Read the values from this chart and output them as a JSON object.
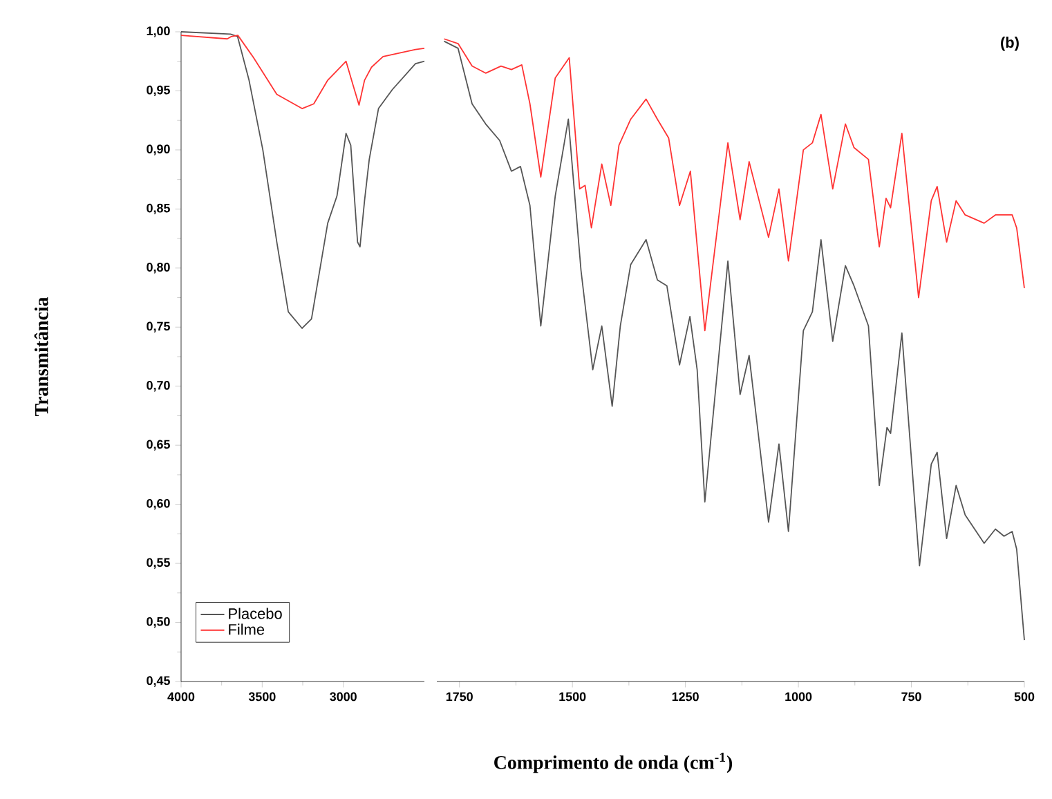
{
  "chart_data": [
    {
      "type": "line",
      "ylabel": "Transmitância",
      "xlim": [
        4000,
        2500
      ],
      "xticks": [
        4000,
        3500,
        3000
      ],
      "ylim": [
        0.45,
        1.0
      ],
      "yticks": [
        {
          "value": 0.45,
          "label": "0,45"
        },
        {
          "value": 0.5,
          "label": "0,50"
        },
        {
          "value": 0.55,
          "label": "0,55"
        },
        {
          "value": 0.6,
          "label": "0,60"
        },
        {
          "value": 0.65,
          "label": "0,65"
        },
        {
          "value": 0.7,
          "label": "0,70"
        },
        {
          "value": 0.75,
          "label": "0,75"
        },
        {
          "value": 0.8,
          "label": "0,80"
        },
        {
          "value": 0.85,
          "label": "0,85"
        },
        {
          "value": 0.9,
          "label": "0,90"
        },
        {
          "value": 0.95,
          "label": "0,95"
        },
        {
          "value": 1.0,
          "label": "1,00"
        }
      ],
      "legend": "bottom left",
      "series": [
        {
          "name": "Placebo",
          "color": "#555555",
          "x": [
            4000,
            3695,
            3652,
            3581,
            3496,
            3410,
            3339,
            3254,
            3196,
            3096,
            3039,
            2983,
            2954,
            2912,
            2897,
            2869,
            2840,
            2783,
            2698,
            2555,
            2500
          ],
          "values": [
            1.0,
            0.998,
            0.996,
            0.959,
            0.9,
            0.822,
            0.763,
            0.749,
            0.757,
            0.838,
            0.861,
            0.914,
            0.904,
            0.822,
            0.818,
            0.857,
            0.892,
            0.935,
            0.951,
            0.973,
            0.975
          ]
        },
        {
          "name": "Filme",
          "color": "#ff3333",
          "x": [
            4000,
            3715,
            3690,
            3650,
            3553,
            3410,
            3254,
            3182,
            3096,
            2983,
            2940,
            2903,
            2869,
            2826,
            2755,
            2555,
            2500
          ],
          "values": [
            0.997,
            0.994,
            0.996,
            0.997,
            0.978,
            0.947,
            0.935,
            0.939,
            0.959,
            0.975,
            0.955,
            0.938,
            0.959,
            0.97,
            0.979,
            0.985,
            0.986
          ]
        }
      ]
    },
    {
      "type": "line",
      "xlabel": "Comprimento de onda (cm$^{-1}$)",
      "annotations": [
        "(b)"
      ],
      "xlim": [
        1800,
        500
      ],
      "xticks": [
        1750,
        1500,
        1250,
        1000,
        750,
        500
      ],
      "ylim": [
        0.45,
        1.0
      ],
      "tick_labels": "x",
      "series": [
        {
          "color": "#555555",
          "x": [
            1784,
            1753,
            1722,
            1692,
            1661,
            1635,
            1615,
            1594,
            1570,
            1538,
            1509,
            1481,
            1455,
            1435,
            1412,
            1394,
            1371,
            1337,
            1312,
            1291,
            1263,
            1240,
            1224,
            1207,
            1156,
            1129,
            1109,
            1066,
            1043,
            1022,
            989,
            969,
            950,
            924,
            896,
            877,
            845,
            821,
            804,
            796,
            771,
            732,
            706,
            693,
            672,
            651,
            631,
            589,
            564,
            545,
            527,
            517,
            500
          ],
          "values": [
            0.992,
            0.986,
            0.939,
            0.922,
            0.908,
            0.882,
            0.886,
            0.853,
            0.751,
            0.861,
            0.926,
            0.798,
            0.714,
            0.751,
            0.683,
            0.751,
            0.803,
            0.824,
            0.79,
            0.785,
            0.718,
            0.759,
            0.714,
            0.602,
            0.806,
            0.693,
            0.726,
            0.585,
            0.651,
            0.577,
            0.747,
            0.763,
            0.824,
            0.738,
            0.802,
            0.785,
            0.751,
            0.616,
            0.665,
            0.66,
            0.745,
            0.548,
            0.634,
            0.644,
            0.571,
            0.616,
            0.591,
            0.567,
            0.579,
            0.573,
            0.577,
            0.562,
            0.485
          ]
        },
        {
          "color": "#ff3333",
          "x": [
            1784,
            1753,
            1722,
            1692,
            1658,
            1635,
            1612,
            1594,
            1570,
            1538,
            1507,
            1484,
            1472,
            1458,
            1435,
            1415,
            1397,
            1371,
            1337,
            1312,
            1287,
            1263,
            1239,
            1207,
            1156,
            1129,
            1109,
            1066,
            1043,
            1022,
            989,
            969,
            950,
            924,
            896,
            877,
            845,
            821,
            806,
            796,
            771,
            734,
            706,
            693,
            672,
            651,
            631,
            589,
            564,
            527,
            517,
            500
          ],
          "values": [
            0.994,
            0.99,
            0.971,
            0.965,
            0.971,
            0.968,
            0.972,
            0.939,
            0.877,
            0.961,
            0.978,
            0.867,
            0.87,
            0.834,
            0.888,
            0.853,
            0.904,
            0.926,
            0.943,
            0.926,
            0.91,
            0.853,
            0.882,
            0.747,
            0.906,
            0.841,
            0.89,
            0.826,
            0.867,
            0.806,
            0.9,
            0.906,
            0.93,
            0.867,
            0.922,
            0.902,
            0.892,
            0.818,
            0.859,
            0.851,
            0.914,
            0.775,
            0.857,
            0.869,
            0.822,
            0.857,
            0.845,
            0.838,
            0.845,
            0.845,
            0.834,
            0.783
          ]
        }
      ]
    }
  ]
}
